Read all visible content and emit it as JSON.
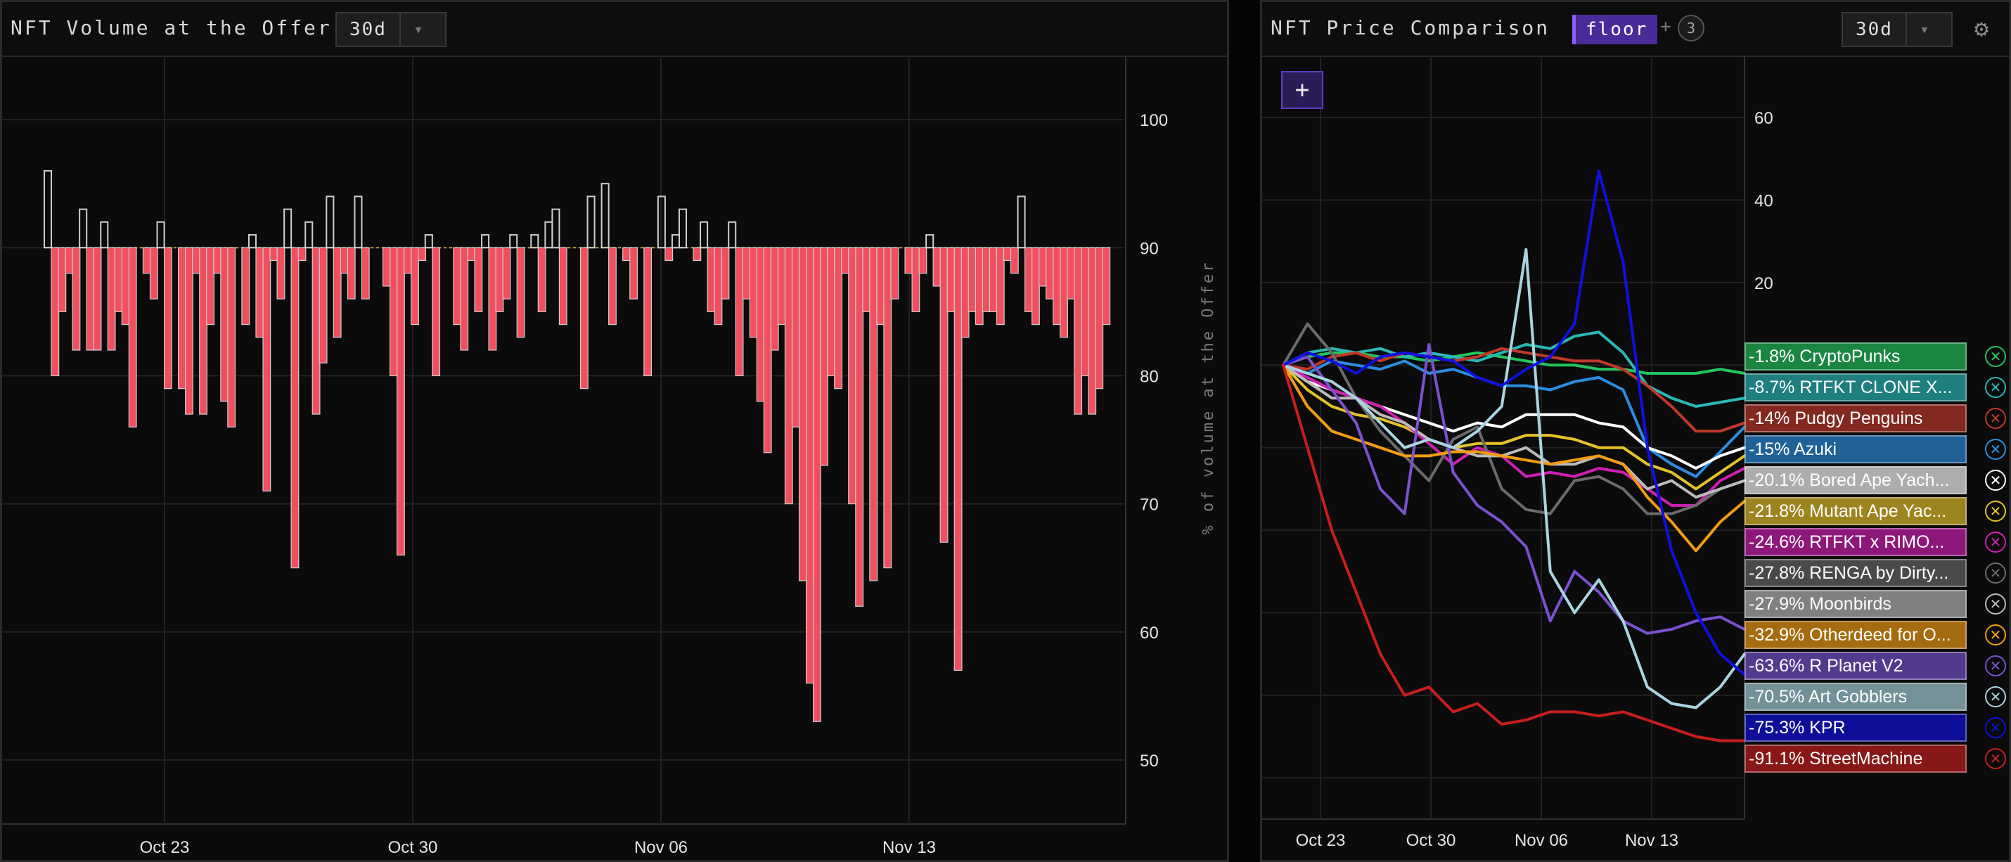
{
  "left_panel": {
    "title": "NFT Volume at the Offer",
    "timeframe": "30d",
    "chart_data": {
      "type": "bar",
      "ylabel": "% of volume at the Offer",
      "ylim": [
        45,
        105
      ],
      "y_ticks": [
        100,
        90,
        80,
        70,
        60,
        50
      ],
      "x_tick_labels": [
        "Oct 23",
        "Oct 30",
        "Nov 06",
        "Nov 13"
      ],
      "baseline": 90,
      "values": [
        96,
        80,
        85,
        88,
        82,
        93,
        82,
        82,
        92,
        82,
        85,
        84,
        76,
        90,
        88,
        86,
        92,
        79,
        90,
        79,
        77,
        88,
        77,
        84,
        88,
        78,
        76,
        90,
        84,
        91,
        83,
        71,
        89,
        86,
        93,
        65,
        89,
        92,
        77,
        81,
        94,
        83,
        88,
        86,
        94,
        86,
        90,
        90,
        87,
        80,
        66,
        88,
        84,
        89,
        91,
        80,
        90,
        90,
        84,
        82,
        89,
        85,
        91,
        82,
        85,
        86,
        91,
        83,
        90,
        91,
        85,
        92,
        93,
        84,
        90,
        90,
        79,
        94,
        90,
        95,
        84,
        90,
        89,
        86,
        90,
        80,
        90,
        94,
        89,
        91,
        93,
        90,
        89,
        92,
        85,
        84,
        86,
        92,
        80,
        86,
        83,
        78,
        74,
        82,
        84,
        70,
        76,
        64,
        56,
        53,
        73,
        80,
        79,
        88,
        70,
        62,
        85,
        64,
        84,
        65,
        86,
        90,
        88,
        85,
        88,
        91,
        87,
        67,
        85,
        57,
        83,
        85,
        84,
        85,
        85,
        84,
        89,
        88,
        94,
        85,
        84,
        87,
        86,
        84,
        83,
        86,
        77,
        80,
        77,
        79,
        84
      ]
    }
  },
  "right_panel": {
    "title": "NFT Price Comparison",
    "metric": "floor",
    "plus_sign": "+",
    "extra_count": "3",
    "timeframe": "30d",
    "add_label": "+",
    "settings_icon": "gear-icon",
    "chart_data": {
      "type": "line",
      "ylim": [
        -110,
        75
      ],
      "y_ticks": [
        60,
        40,
        20
      ],
      "x_tick_labels": [
        "Oct 23",
        "Oct 30",
        "Nov 06",
        "Nov 13"
      ],
      "series": [
        {
          "name": "CryptoPunks",
          "pct": "-1.8%",
          "color": "#22c55e",
          "values": [
            0,
            2,
            3,
            3,
            2,
            2,
            1,
            2,
            3,
            2,
            1,
            0,
            0,
            -1,
            -1,
            -2,
            -2,
            -2,
            -1,
            -2
          ]
        },
        {
          "name": "RTFKT CLONE X...",
          "pct": "-8.7%",
          "color": "#2ab8b8",
          "values": [
            0,
            3,
            4,
            3,
            4,
            2,
            3,
            2,
            1,
            3,
            5,
            4,
            7,
            8,
            3,
            -5,
            -8,
            -10,
            -9,
            -8
          ]
        },
        {
          "name": "Pudgy Penguins",
          "pct": "-14%",
          "color": "#c0392b",
          "values": [
            0,
            -1,
            2,
            3,
            1,
            3,
            2,
            1,
            2,
            4,
            3,
            2,
            1,
            1,
            -1,
            -5,
            -10,
            -16,
            -16,
            -14
          ]
        },
        {
          "name": "Azuki",
          "pct": "-15%",
          "color": "#2b8de0",
          "values": [
            0,
            -2,
            1,
            0,
            -1,
            1,
            -2,
            -1,
            -3,
            -5,
            -5,
            -6,
            -4,
            -3,
            -6,
            -20,
            -24,
            -27,
            -21,
            -15
          ]
        },
        {
          "name": "Bored Ape Yach...",
          "pct": "-20.1%",
          "color": "#ffffff",
          "values": [
            0,
            -4,
            -6,
            -8,
            -10,
            -12,
            -14,
            -16,
            -14,
            -15,
            -12,
            -12,
            -12,
            -14,
            -15,
            -20,
            -22,
            -25,
            -22,
            -20
          ]
        },
        {
          "name": "Mutant Ape Yac...",
          "pct": "-21.8%",
          "color": "#e6c229",
          "values": [
            0,
            -6,
            -10,
            -12,
            -13,
            -15,
            -18,
            -20,
            -19,
            -19,
            -17,
            -17,
            -18,
            -20,
            -20,
            -24,
            -26,
            -30,
            -26,
            -22
          ]
        },
        {
          "name": "RTFKT x RIMO...",
          "pct": "-24.6%",
          "color": "#d01fb2",
          "values": [
            0,
            -3,
            -6,
            -8,
            -10,
            -14,
            -19,
            -24,
            -20,
            -22,
            -27,
            -26,
            -27,
            -25,
            -26,
            -30,
            -34,
            -34,
            -28,
            -25
          ]
        },
        {
          "name": "RENGA by Dirty...",
          "pct": "-27.8%",
          "color": "#6b6b6b",
          "values": [
            0,
            10,
            3,
            -8,
            -16,
            -22,
            -28,
            -18,
            -15,
            -30,
            -35,
            -36,
            -28,
            -27,
            -30,
            -36,
            -36,
            -34,
            -30,
            -28
          ]
        },
        {
          "name": "Moonbirds",
          "pct": "-27.9%",
          "color": "#bbbbbb",
          "values": [
            0,
            -4,
            -8,
            -8,
            -12,
            -14,
            -18,
            -20,
            -22,
            -22,
            -20,
            -24,
            -24,
            -22,
            -24,
            -30,
            -28,
            -32,
            -30,
            -28
          ]
        },
        {
          "name": "Otherdeed for O...",
          "pct": "-32.9%",
          "color": "#f39c12",
          "values": [
            0,
            -10,
            -16,
            -18,
            -20,
            -22,
            -22,
            -21,
            -21,
            -22,
            -23,
            -24,
            -23,
            -22,
            -24,
            -32,
            -38,
            -45,
            -38,
            -33
          ]
        },
        {
          "name": "R Planet V2",
          "pct": "-63.6%",
          "color": "#7a52d0",
          "values": [
            0,
            2,
            -6,
            -14,
            -30,
            -36,
            5,
            -26,
            -34,
            -38,
            -44,
            -62,
            -50,
            -55,
            -62,
            -65,
            -64,
            -62,
            -61,
            -64
          ]
        },
        {
          "name": "Art Gobblers",
          "pct": "-70.5%",
          "color": "#a9d4e0",
          "values": [
            0,
            -2,
            -4,
            -8,
            -14,
            -20,
            -18,
            -20,
            -16,
            -10,
            28,
            -50,
            -60,
            -52,
            -62,
            -78,
            -82,
            -83,
            -78,
            -70
          ]
        },
        {
          "name": "KPR",
          "pct": "-75.3%",
          "color": "#1010e0",
          "values": [
            0,
            3,
            1,
            -2,
            2,
            3,
            2,
            1,
            -3,
            -5,
            -1,
            2,
            10,
            47,
            25,
            -20,
            -45,
            -60,
            -70,
            -75
          ]
        },
        {
          "name": "StreetMachine",
          "pct": "-91.1%",
          "color": "#c81e1e",
          "values": [
            0,
            -20,
            -40,
            -55,
            -70,
            -80,
            -78,
            -84,
            -82,
            -87,
            -86,
            -84,
            -84,
            -85,
            -84,
            -86,
            -88,
            -90,
            -91,
            -91
          ]
        }
      ]
    }
  }
}
